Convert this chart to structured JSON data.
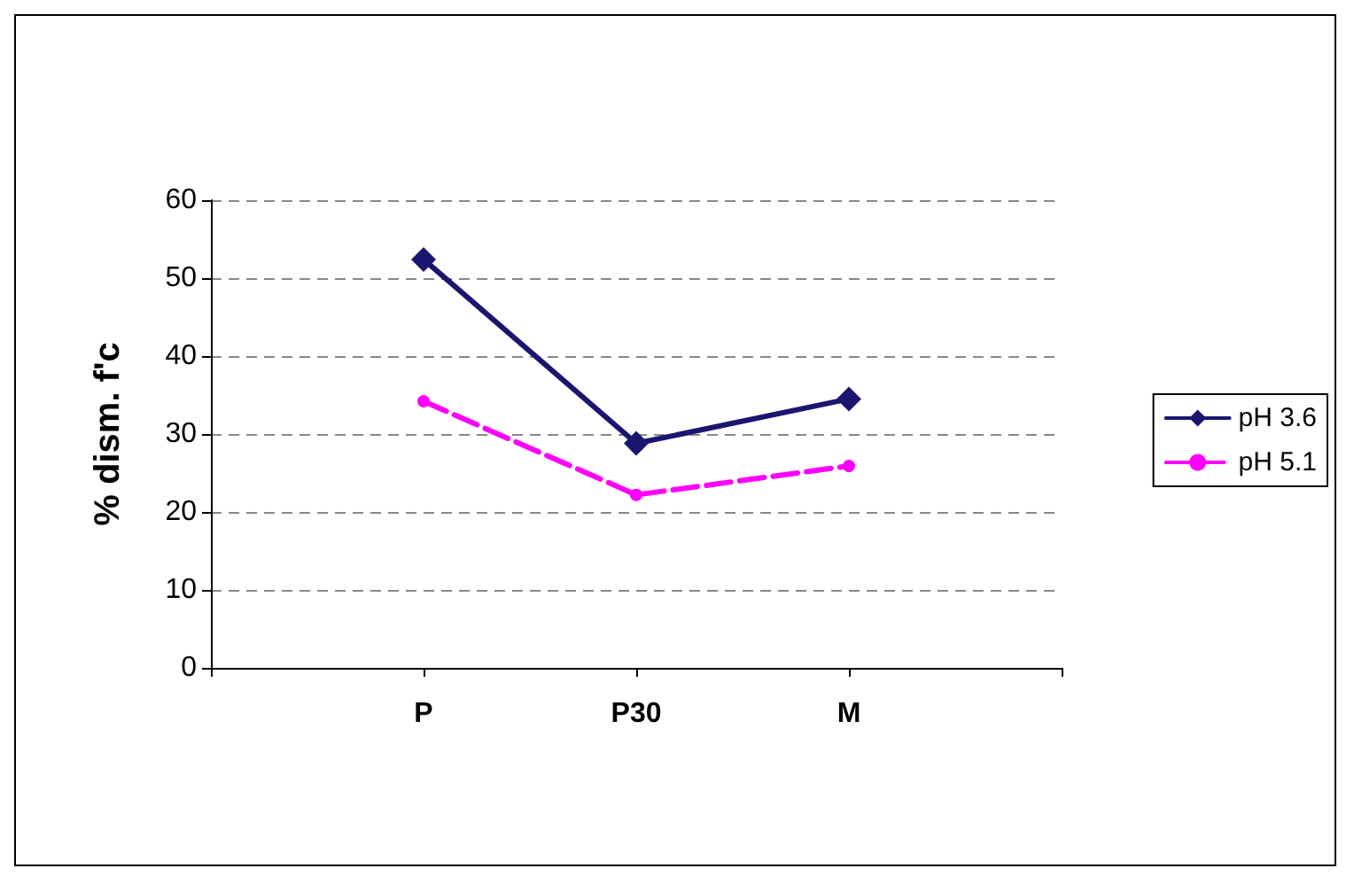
{
  "chart_data": {
    "type": "line",
    "ylabel": "% dism. f'c",
    "categories": [
      null,
      "P",
      "P30",
      "M",
      null
    ],
    "series": [
      {
        "name": "pH 3.6",
        "color": "#1a1670",
        "marker": "diamond",
        "line_style": "solid",
        "values": [
          null,
          52.4,
          28.8,
          34.5,
          null
        ]
      },
      {
        "name": "pH 5.1",
        "color": "#ff00ff",
        "marker": "circle",
        "line_style": "dashed",
        "values": [
          null,
          34.2,
          22.2,
          25.9,
          null
        ]
      }
    ],
    "ylim": [
      0,
      60
    ],
    "yticks": [
      0,
      10,
      20,
      30,
      40,
      50,
      60
    ],
    "grid": "y",
    "legend": "right"
  }
}
